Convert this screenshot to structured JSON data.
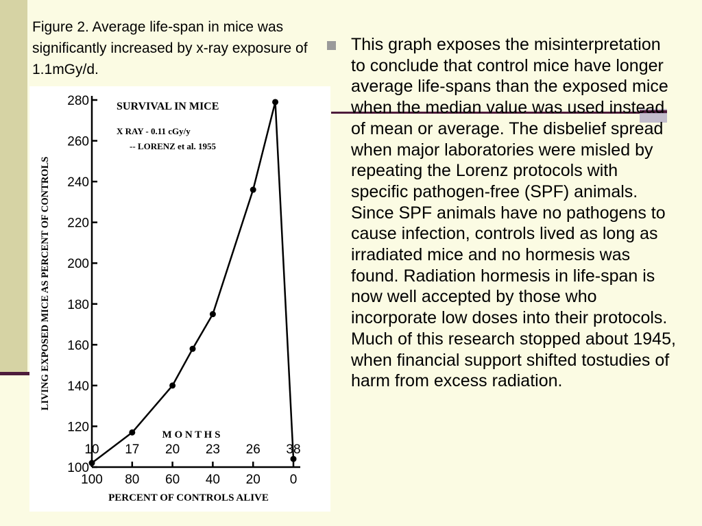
{
  "caption": "Figure 2. Average life-span in mice was significantly increased by x-ray exposure of 1.1mGy/d.",
  "bullet_text": "This graph exposes the misinterpretation to conclude that control mice have longer average life-spans than the exposed mice when the median value was used instead of mean or average. The disbelief spread when major laboratories were misled by repeating the Lorenz protocols with specific pathogen-free (SPF) animals. Since SPF animals have no pathogens to cause infection, controls lived as long as irradiated mice and no hormesis was found. Radiation hormesis in life-span is now well accepted by those who incorporate low doses into their protocols. Much of this research stopped about 1945, when financial support shifted tostudies of harm from excess radiation.",
  "colors": {
    "background": "#fbfbe3",
    "accent_band": "#d6d3a4",
    "rule": "#4d1b3b",
    "bullet": "#9a9a9a"
  },
  "chart_data": {
    "type": "line",
    "title": "SURVIVAL IN MICE",
    "subtitle_1": "X RAY - 0.11 cGy/y",
    "subtitle_2": "-- LORENZ et al. 1955",
    "xlabel": "PERCENT OF CONTROLS ALIVE",
    "ylabel": "LIVING EXPOSED MICE AS PERCENT OF CONTROLS",
    "xlim": [
      100,
      0
    ],
    "ylim": [
      100,
      280
    ],
    "x_ticks": [
      100,
      80,
      60,
      40,
      20,
      0
    ],
    "y_ticks": [
      100,
      120,
      140,
      160,
      180,
      200,
      220,
      240,
      260,
      280
    ],
    "months_label": "M O N T H S",
    "months": [
      {
        "label": "10",
        "x": 100
      },
      {
        "label": "17",
        "x": 80
      },
      {
        "label": "20",
        "x": 60
      },
      {
        "label": "23",
        "x": 40
      },
      {
        "label": "26",
        "x": 20
      },
      {
        "label": "38",
        "x": 0
      }
    ],
    "series": [
      {
        "name": "exposed mice",
        "x": [
          100,
          80,
          60,
          50,
          40,
          20,
          9,
          0
        ],
        "y": [
          102,
          117,
          140,
          158,
          175,
          236,
          279,
          104
        ]
      }
    ]
  }
}
